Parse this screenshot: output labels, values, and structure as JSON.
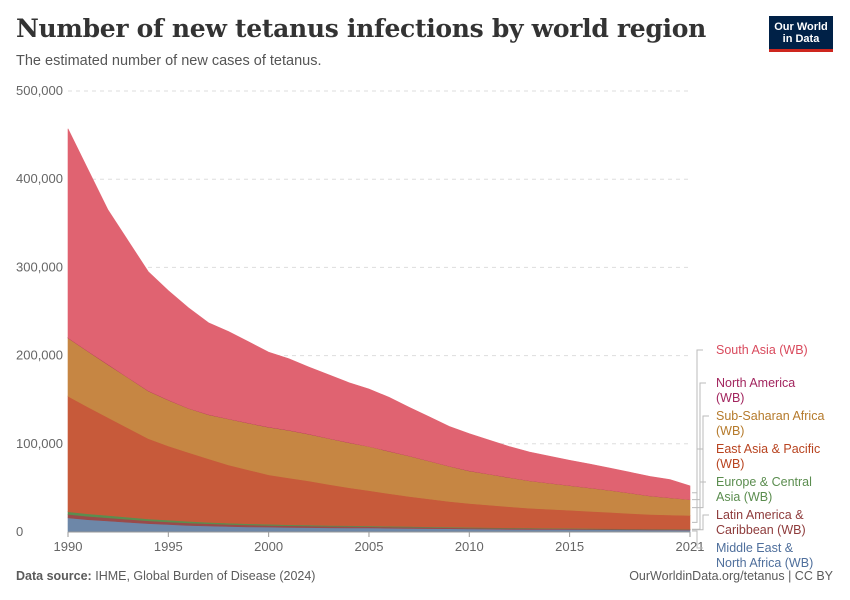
{
  "header": {
    "title": "Number of new tetanus infections by world region",
    "subtitle": "The estimated number of new cases of tetanus."
  },
  "logo": {
    "line1": "Our World",
    "line2": "in Data",
    "bg": "#002147",
    "accent": "#ce261e"
  },
  "footer": {
    "source_label": "Data source:",
    "source_text": "IHME, Global Burden of Disease (2024)",
    "right_text": "OurWorldinData.org/tetanus | CC BY"
  },
  "chart_data": {
    "type": "area",
    "stacked": true,
    "ylim": [
      0,
      500000
    ],
    "y_ticks": [
      0,
      100000,
      200000,
      300000,
      400000,
      500000
    ],
    "y_tick_labels": [
      "0",
      "100,000",
      "200,000",
      "300,000",
      "400,000",
      "500,000"
    ],
    "x_ticks": [
      1990,
      1995,
      2000,
      2005,
      2010,
      2015,
      2021
    ],
    "grid": "horizontal dashed",
    "legend_placement": "right",
    "x": [
      1990,
      1991,
      1992,
      1993,
      1994,
      1995,
      1996,
      1997,
      1998,
      1999,
      2000,
      2001,
      2002,
      2003,
      2004,
      2005,
      2006,
      2007,
      2008,
      2009,
      2010,
      2011,
      2012,
      2013,
      2014,
      2015,
      2016,
      2017,
      2018,
      2019,
      2020,
      2021
    ],
    "series": [
      {
        "name": "Middle East & North Africa (WB)",
        "color": "#6d87a8",
        "values": [
          16000,
          14000,
          12500,
          11000,
          9500,
          8500,
          7500,
          6800,
          6200,
          5800,
          5500,
          5200,
          5000,
          4800,
          4700,
          4500,
          4300,
          4100,
          3900,
          3700,
          3500,
          3300,
          3100,
          3000,
          2900,
          2800,
          2700,
          2600,
          2500,
          2400,
          2300,
          2200
        ]
      },
      {
        "name": "Latin America & Caribbean (WB)",
        "color": "#9a4a4a",
        "values": [
          4000,
          3800,
          3600,
          3400,
          3200,
          3000,
          2800,
          2600,
          2400,
          2200,
          2000,
          1900,
          1800,
          1700,
          1600,
          1500,
          1400,
          1300,
          1250,
          1200,
          1150,
          1100,
          1050,
          1000,
          950,
          900,
          850,
          800,
          760,
          720,
          690,
          660
        ]
      },
      {
        "name": "Europe & Central Asia (WB)",
        "color": "#5b8d4f",
        "values": [
          3000,
          2800,
          2600,
          2400,
          2200,
          2000,
          1800,
          1600,
          1500,
          1400,
          1300,
          1200,
          1100,
          1000,
          950,
          900,
          850,
          800,
          750,
          700,
          650,
          600,
          560,
          520,
          490,
          460,
          430,
          400,
          380,
          360,
          340,
          320
        ]
      },
      {
        "name": "East Asia & Pacific (WB)",
        "color": "#c75a3a",
        "values": [
          131000,
          121000,
          111000,
          101000,
          91000,
          84000,
          78000,
          72000,
          66000,
          61000,
          56000,
          53000,
          50000,
          46500,
          43000,
          40000,
          37000,
          34000,
          31500,
          29000,
          27000,
          25500,
          24000,
          22500,
          21500,
          20500,
          19500,
          18500,
          17500,
          16500,
          16000,
          15500
        ]
      },
      {
        "name": "Sub-Saharan Africa (WB)",
        "color": "#c68643",
        "values": [
          66000,
          63000,
          60000,
          57000,
          54000,
          52000,
          50000,
          50000,
          52000,
          53000,
          54000,
          54000,
          53000,
          52000,
          51000,
          50000,
          48000,
          46000,
          43000,
          40000,
          37000,
          35000,
          33000,
          31000,
          29500,
          28000,
          26500,
          25000,
          23000,
          21000,
          19500,
          18000
        ]
      },
      {
        "name": "North America (WB)",
        "color": "#a2255e",
        "values": [
          300,
          290,
          280,
          270,
          260,
          250,
          240,
          230,
          220,
          210,
          200,
          195,
          190,
          185,
          180,
          175,
          170,
          165,
          160,
          155,
          150,
          145,
          140,
          135,
          130,
          125,
          120,
          115,
          110,
          105,
          100,
          95
        ]
      },
      {
        "name": "South Asia (WB)",
        "color": "#e06371",
        "values": [
          237000,
          206000,
          175000,
          155000,
          135000,
          124000,
          114000,
          104000,
          99000,
          92000,
          85000,
          81000,
          76000,
          72000,
          68000,
          65000,
          61000,
          55000,
          50000,
          45000,
          42000,
          38500,
          35000,
          32500,
          30500,
          28500,
          27000,
          25000,
          23500,
          22000,
          20500,
          15500
        ]
      }
    ],
    "legend_order": [
      "South Asia (WB)",
      "North America (WB)",
      "Sub-Saharan Africa (WB)",
      "East Asia & Pacific (WB)",
      "Europe & Central Asia (WB)",
      "Latin America & Caribbean (WB)",
      "Middle East & North Africa (WB)"
    ],
    "legend_lines": [
      [
        "South Asia (WB)"
      ],
      [
        "North America",
        "(WB)"
      ],
      [
        "Sub-Saharan Africa",
        "(WB)"
      ],
      [
        "East Asia & Pacific",
        "(WB)"
      ],
      [
        "Europe & Central",
        "Asia (WB)"
      ],
      [
        "Latin America &",
        "Caribbean (WB)"
      ],
      [
        "Middle East &",
        "North Africa (WB)"
      ]
    ],
    "legend_colors": [
      "#d94a5d",
      "#a2255e",
      "#b57a2b",
      "#b8431f",
      "#5b8d4f",
      "#8e3b3b",
      "#4f6f9c"
    ]
  }
}
